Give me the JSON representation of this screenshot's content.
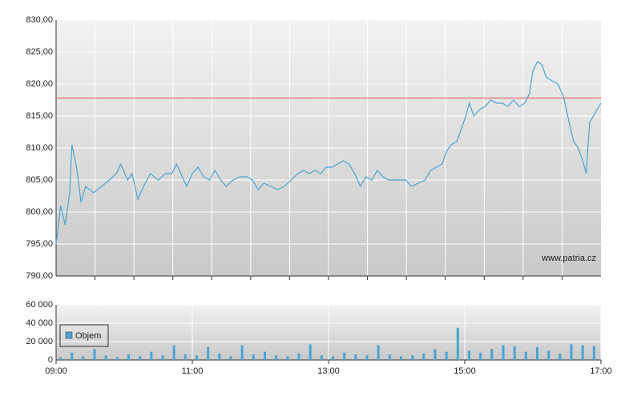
{
  "chart_data": [
    {
      "type": "line",
      "color": "#4aa3d3",
      "x": [
        "09:00",
        "09:04",
        "09:08",
        "09:12",
        "09:14",
        "09:18",
        "09:22",
        "09:26",
        "09:33",
        "09:40",
        "09:47",
        "09:53",
        "09:57",
        "10:03",
        "10:07",
        "10:12",
        "10:17",
        "10:23",
        "10:30",
        "10:36",
        "10:42",
        "10:46",
        "10:50",
        "10:55",
        "11:00",
        "11:05",
        "11:10",
        "11:15",
        "11:20",
        "11:25",
        "11:30",
        "11:36",
        "11:42",
        "11:48",
        "11:53",
        "11:58",
        "12:03",
        "12:09",
        "12:15",
        "12:21",
        "12:27",
        "12:33",
        "12:38",
        "12:43",
        "12:48",
        "12:53",
        "12:58",
        "13:03",
        "13:08",
        "13:13",
        "13:18",
        "13:23",
        "13:28",
        "13:33",
        "13:38",
        "13:43",
        "13:48",
        "13:53",
        "13:58",
        "14:03",
        "14:08",
        "14:13",
        "14:19",
        "14:25",
        "14:30",
        "14:35",
        "14:40",
        "14:44",
        "14:48",
        "14:53",
        "14:57",
        "15:01",
        "15:04",
        "15:08",
        "15:13",
        "15:18",
        "15:23",
        "15:28",
        "15:33",
        "15:38",
        "15:43",
        "15:48",
        "15:53",
        "15:57",
        "16:00",
        "16:04",
        "16:08",
        "16:12",
        "16:17",
        "16:22",
        "16:27",
        "16:32",
        "16:36",
        "16:40",
        "16:44",
        "16:47",
        "16:50",
        "16:55",
        "17:00"
      ],
      "values": [
        795,
        801,
        798,
        803,
        810.5,
        807,
        801.5,
        804,
        803,
        804,
        805,
        806,
        807.5,
        805,
        806,
        802,
        804,
        806,
        805,
        806,
        806,
        807.5,
        806,
        804,
        806,
        807,
        805.5,
        805,
        806.5,
        805,
        804,
        805,
        805.5,
        805.5,
        805,
        803.5,
        804.5,
        804,
        803.5,
        804,
        805,
        806,
        806.5,
        806,
        806.5,
        806,
        807,
        807,
        807.5,
        808,
        807.5,
        806,
        804,
        805.5,
        805,
        806.5,
        805.5,
        805,
        805,
        805,
        805,
        804,
        804.5,
        805,
        806.5,
        807,
        807.5,
        809.5,
        810.5,
        811,
        813,
        815,
        817,
        815,
        816,
        816.5,
        817.5,
        817,
        817,
        816.5,
        817.5,
        816.5,
        817,
        818.5,
        822,
        823.5,
        823,
        821,
        820.5,
        820,
        818,
        814,
        811,
        810,
        808,
        806,
        814,
        815.5,
        817
      ],
      "xlim": [
        "09:00",
        "17:00"
      ],
      "ylim": [
        790,
        830
      ],
      "yticks": [
        {
          "value": 790,
          "label": "790,00"
        },
        {
          "value": 795,
          "label": "795,00"
        },
        {
          "value": 800,
          "label": "800,00"
        },
        {
          "value": 805,
          "label": "805,00"
        },
        {
          "value": 810,
          "label": "810,00"
        },
        {
          "value": 815,
          "label": "815,00"
        },
        {
          "value": 820,
          "label": "820,00"
        },
        {
          "value": 825,
          "label": "825,00"
        },
        {
          "value": 830,
          "label": "830,00"
        }
      ],
      "ref_line": {
        "value": 817.8,
        "color": "#e05050"
      },
      "watermark": "www.patria.cz",
      "grid": true
    },
    {
      "type": "bar",
      "x": [
        "09:00",
        "09:10",
        "09:20",
        "09:30",
        "09:40",
        "09:50",
        "10:00",
        "10:10",
        "10:20",
        "10:30",
        "10:40",
        "10:50",
        "11:00",
        "11:10",
        "11:20",
        "11:30",
        "11:40",
        "11:50",
        "12:00",
        "12:10",
        "12:20",
        "12:30",
        "12:40",
        "12:50",
        "13:00",
        "13:10",
        "13:20",
        "13:30",
        "13:40",
        "13:50",
        "14:00",
        "14:10",
        "14:20",
        "14:30",
        "14:40",
        "14:50",
        "15:00",
        "15:10",
        "15:20",
        "15:30",
        "15:40",
        "15:50",
        "16:00",
        "16:10",
        "16:20",
        "16:30",
        "16:40",
        "16:50"
      ],
      "series": [
        {
          "name": "Objem",
          "color": "#4aa3d3",
          "values": [
            3000,
            8000,
            4000,
            12000,
            5000,
            3000,
            6000,
            4000,
            9000,
            5000,
            16000,
            6000,
            5000,
            14000,
            7000,
            4000,
            16000,
            6000,
            9000,
            5000,
            4000,
            7000,
            17000,
            5000,
            4000,
            8000,
            6000,
            5000,
            16000,
            6000,
            4000,
            5000,
            7000,
            12000,
            9000,
            35000,
            10000,
            8000,
            12000,
            16000,
            15000,
            9000,
            14000,
            10000,
            7000,
            17000,
            16000,
            15000
          ]
        }
      ],
      "xlim": [
        "09:00",
        "17:00"
      ],
      "xticks": [
        "09:00",
        "11:00",
        "13:00",
        "15:00",
        "17:00"
      ],
      "ylim": [
        0,
        60000
      ],
      "yticks": [
        0,
        {
          "value": 20000,
          "label": "20 000"
        },
        {
          "value": 40000,
          "label": "40 000"
        },
        {
          "value": 60000,
          "label": "60 000"
        }
      ],
      "grid": true
    }
  ]
}
